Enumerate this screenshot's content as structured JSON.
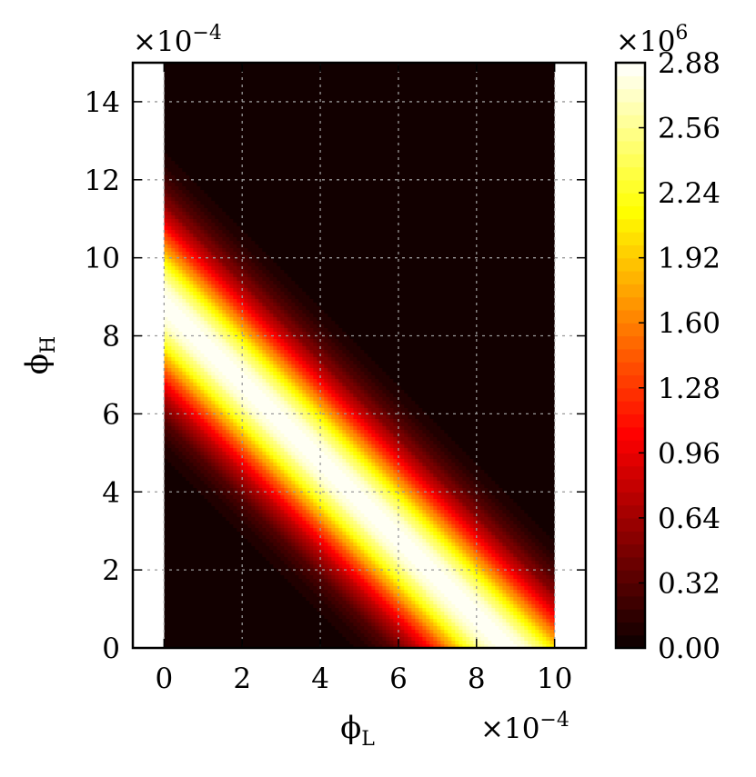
{
  "chart_data": {
    "type": "heatmap",
    "subtype": "filled-contour",
    "colormap": "hot",
    "x": {
      "label_main": "ϕ",
      "label_sub": "L",
      "ticks": [
        0,
        2,
        4,
        6,
        8,
        10
      ],
      "tick_labels": [
        "0",
        "2",
        "4",
        "6",
        "8",
        "10"
      ],
      "lim": [
        -0.8,
        10.8
      ],
      "data_extent": [
        0,
        10
      ],
      "multiplier_base": "×10",
      "multiplier_exp": "−4"
    },
    "y": {
      "label_main": "ϕ",
      "label_sub": "H",
      "ticks": [
        0,
        2,
        4,
        6,
        8,
        10,
        12,
        14
      ],
      "tick_labels": [
        "0",
        "2",
        "4",
        "6",
        "8",
        "10",
        "12",
        "14"
      ],
      "lim": [
        0,
        15
      ],
      "multiplier_base": "×10",
      "multiplier_exp": "−4"
    },
    "colorbar": {
      "ticks": [
        0.0,
        0.32,
        0.64,
        0.96,
        1.28,
        1.6,
        1.92,
        2.24,
        2.56,
        2.88
      ],
      "tick_labels": [
        "0.00",
        "0.32",
        "0.64",
        "0.96",
        "1.28",
        "1.60",
        "1.92",
        "2.24",
        "2.56",
        "2.88"
      ],
      "range": [
        0.0,
        2.88
      ],
      "levels": 45,
      "multiplier_base": "×10",
      "multiplier_exp": "6"
    },
    "field": {
      "form": "peak * exp(-((x + y - center)^2) / (2 * width_x * width_y))",
      "ridge": "x + y ≈ 8.8 (×10^-4)",
      "peak": 2.88,
      "center": 8.8,
      "width_x": 1.43,
      "width_y": 1.43
    },
    "grid": true
  }
}
